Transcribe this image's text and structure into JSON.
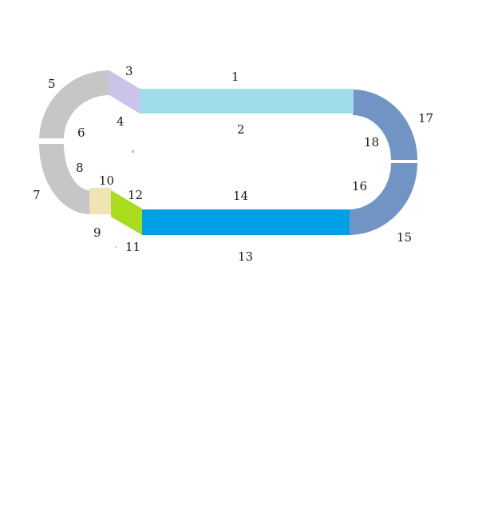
{
  "diagram": {
    "segments": [
      {
        "id": "seg-1",
        "label": "1",
        "color": "#a0dcea"
      },
      {
        "id": "seg-2",
        "label": "2",
        "color": "#a0dcea"
      },
      {
        "id": "seg-3",
        "label": "3",
        "color": "#cbc3e9"
      },
      {
        "id": "seg-4",
        "label": "4",
        "color": "#cbc3e9"
      },
      {
        "id": "seg-5",
        "label": "5",
        "color": "#c6c6c6"
      },
      {
        "id": "seg-6",
        "label": "6",
        "color": "#c6c6c6"
      },
      {
        "id": "seg-7",
        "label": "7",
        "color": "#c6c6c6"
      },
      {
        "id": "seg-8",
        "label": "8",
        "color": "#c6c6c6"
      },
      {
        "id": "seg-9",
        "label": "9",
        "color": "#efe4b4"
      },
      {
        "id": "seg-10",
        "label": "10",
        "color": "#efe4b4"
      },
      {
        "id": "seg-11",
        "label": "11",
        "color": "#aadc1e"
      },
      {
        "id": "seg-12",
        "label": "12",
        "color": "#aadc1e"
      },
      {
        "id": "seg-13",
        "label": "13",
        "color": "#00a0e6"
      },
      {
        "id": "seg-14",
        "label": "14",
        "color": "#00a0e6"
      },
      {
        "id": "seg-15",
        "label": "15",
        "color": "#7194c4"
      },
      {
        "id": "seg-16",
        "label": "16",
        "color": "#7194c4"
      },
      {
        "id": "seg-17",
        "label": "17",
        "color": "#7194c4"
      },
      {
        "id": "seg-18",
        "label": "18",
        "color": "#7194c4"
      }
    ]
  }
}
